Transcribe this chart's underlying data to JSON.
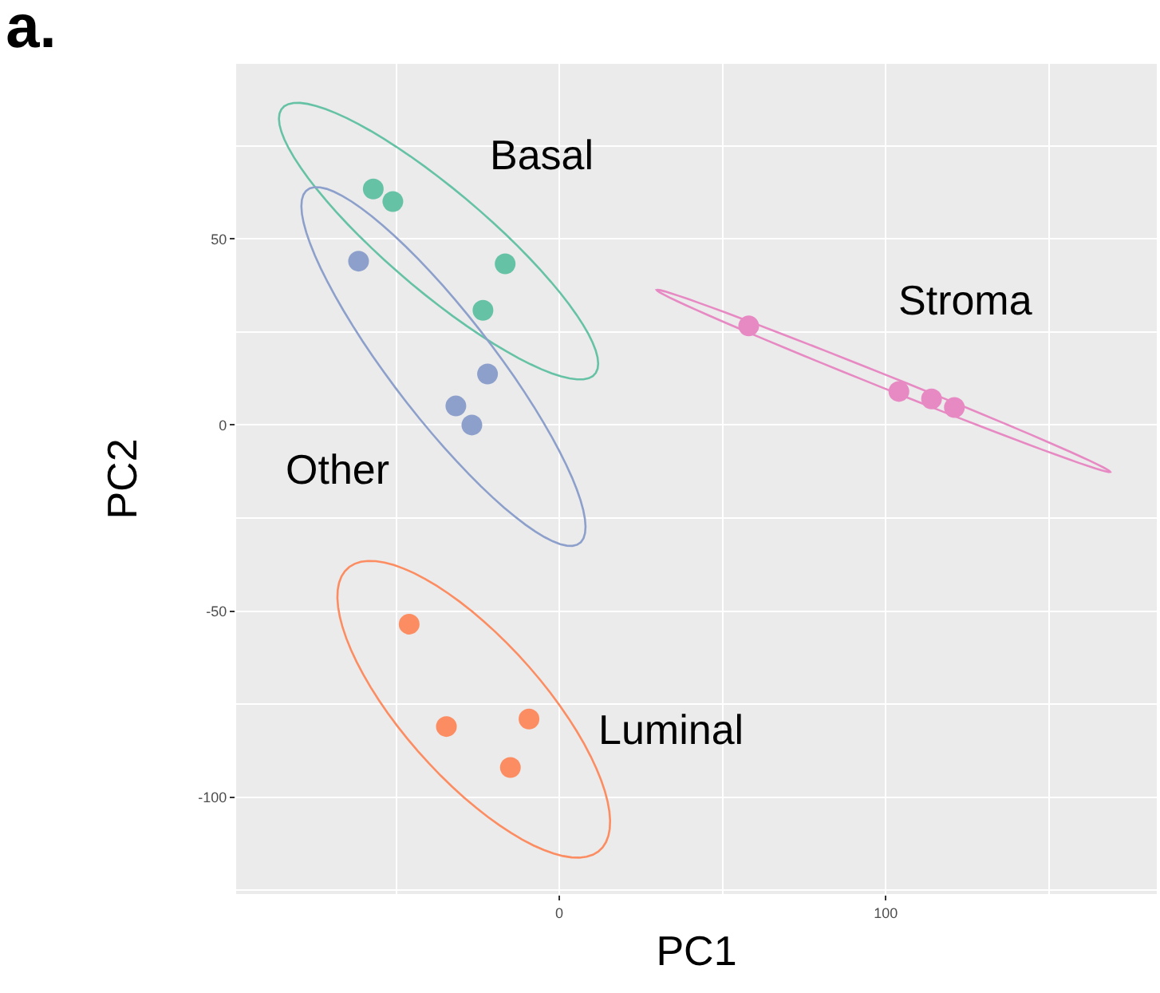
{
  "chart_data": {
    "type": "scatter",
    "title": "a.",
    "xlabel": "PC1",
    "ylabel": "PC2",
    "xlim": [
      -99,
      183
    ],
    "ylim": [
      -126,
      97
    ],
    "xticks": [
      0,
      100
    ],
    "yticks": [
      -100,
      -50,
      0,
      50
    ],
    "grid": true,
    "legend": false,
    "marker": "circle",
    "series": [
      {
        "name": "Basal",
        "color": "#66c2a5",
        "x": [
          -57,
          -51,
          -16.6,
          -23.4
        ],
        "values": [
          63.4,
          60,
          43.3,
          30.8
        ]
      },
      {
        "name": "Other",
        "color": "#8da0cb",
        "x": [
          -61.5,
          -22,
          -31.7,
          -26.8
        ],
        "values": [
          44,
          13.7,
          5.1,
          0
        ]
      },
      {
        "name": "Luminal",
        "color": "#fc8d62",
        "x": [
          -46,
          -34.6,
          -9.3,
          -15
        ],
        "values": [
          -53.5,
          -81,
          -79,
          -92
        ]
      },
      {
        "name": "Stroma",
        "color": "#e78ac3",
        "x": [
          58,
          104,
          114,
          121
        ],
        "values": [
          26.6,
          9,
          7,
          4.7
        ]
      }
    ]
  }
}
